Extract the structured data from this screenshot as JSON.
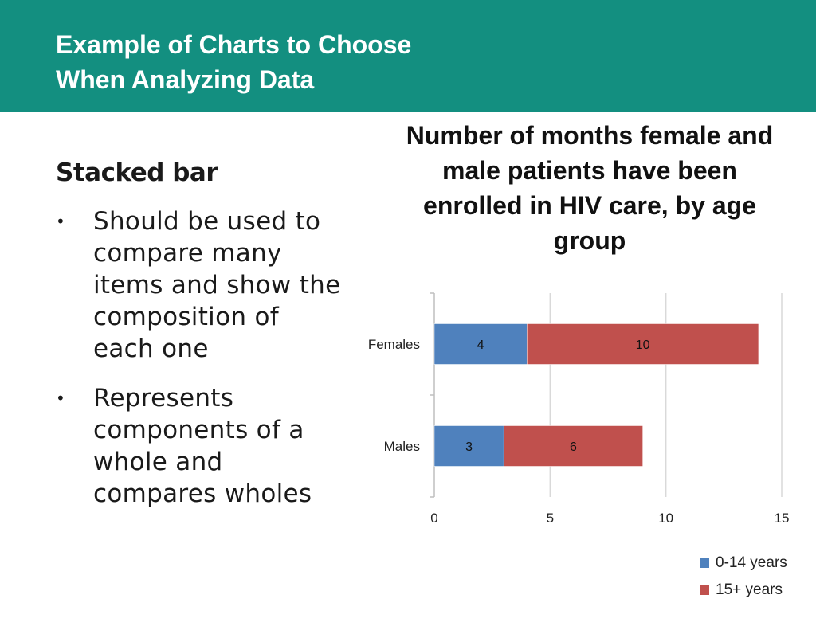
{
  "header": {
    "title_lines": [
      "Example of Charts to Choose",
      "When Analyzing Data"
    ]
  },
  "content": {
    "heading": "Stacked bar",
    "bullet_symbol": "•",
    "bullets": [
      "Should be used to compare many items and show the composition of each one",
      "Represents components of a whole and compares wholes"
    ]
  },
  "colors": {
    "header_bg": "#138f80",
    "series_0_14": "#4f81bd",
    "series_15_plus": "#c0504d",
    "gridline": "#d9d9d9"
  },
  "chart_data": {
    "type": "bar",
    "orientation": "horizontal",
    "stacked": true,
    "title_lines": [
      "Number of months female and",
      "male patients have been",
      "enrolled in HIV care, by age",
      "group"
    ],
    "categories": [
      "Females",
      "Males"
    ],
    "series": [
      {
        "name": "0-14 years",
        "values": [
          4,
          3
        ],
        "color": "#4f81bd"
      },
      {
        "name": "15+ years",
        "values": [
          10,
          6
        ],
        "color": "#c0504d"
      }
    ],
    "xlim": [
      0,
      15
    ],
    "xticks": [
      0,
      5,
      10,
      15
    ],
    "data_labels": true,
    "grid": true,
    "legend_position": "bottom-right"
  }
}
